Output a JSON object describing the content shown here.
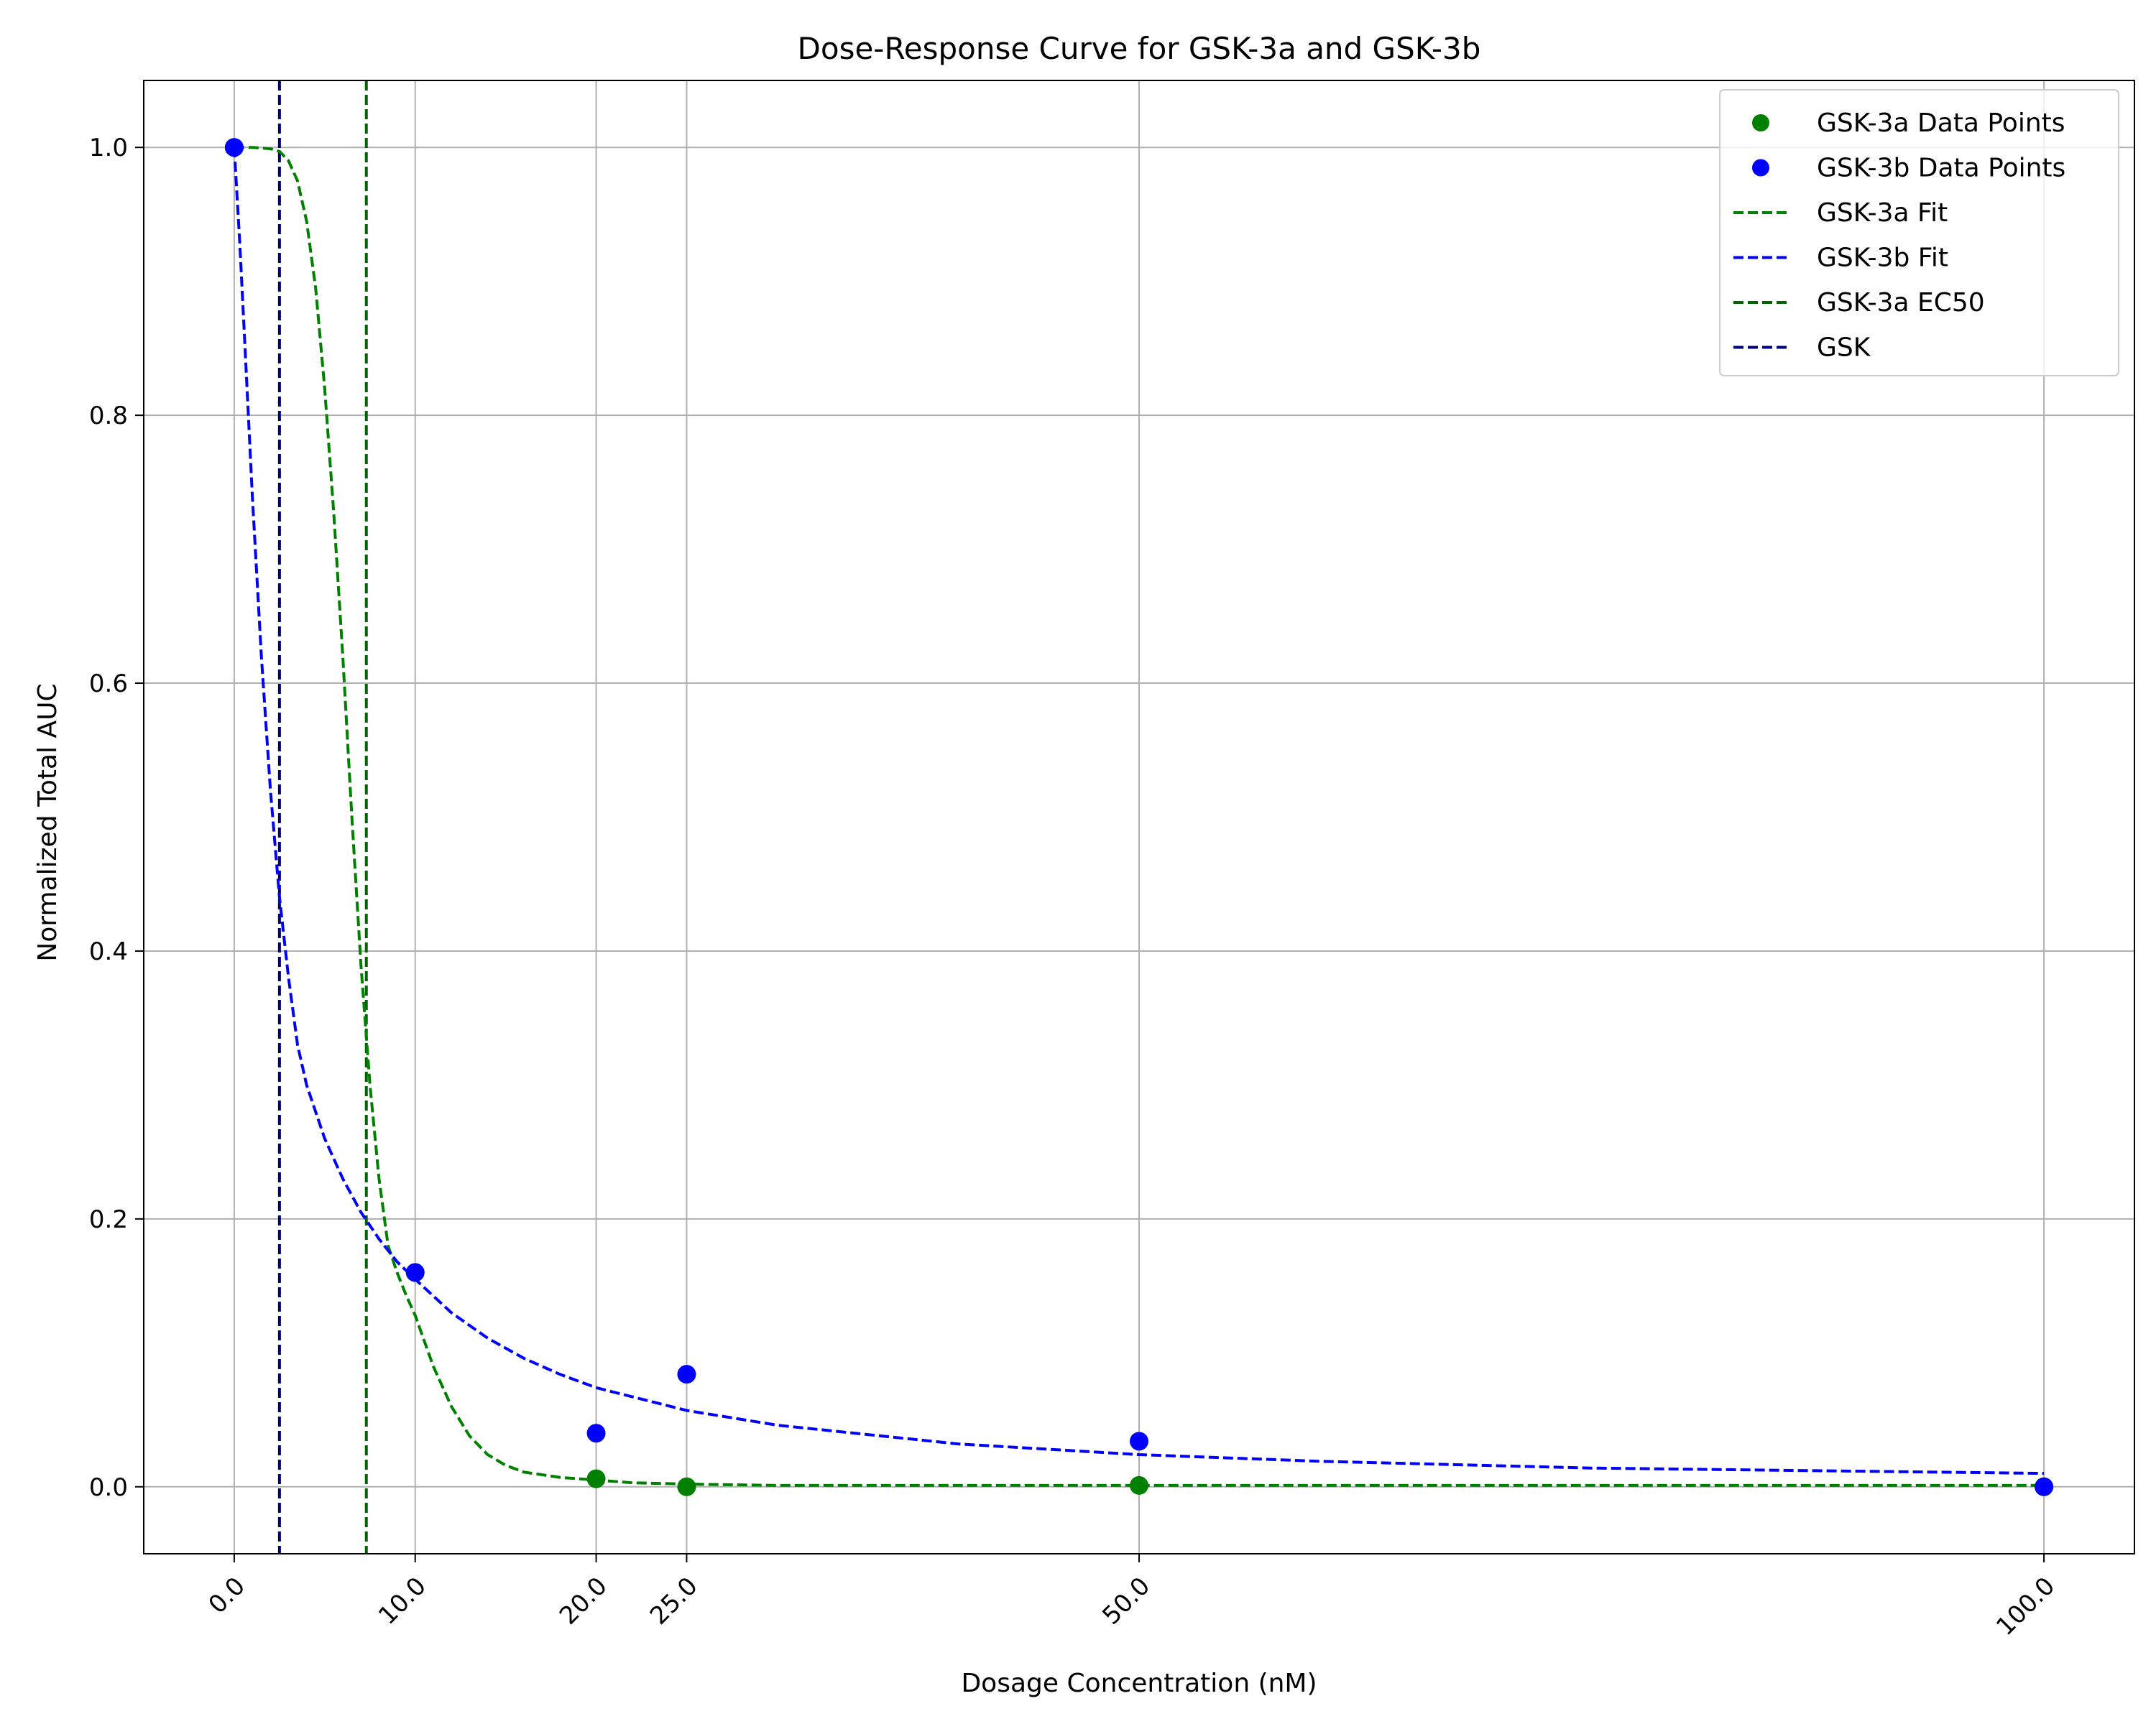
{
  "chart_data": {
    "type": "scatter",
    "title": "Dose-Response Curve for GSK-3a and GSK-3b",
    "xlabel": "Dosage Concentration (nM)",
    "ylabel": "Normalized Total AUC",
    "xlim": [
      -5,
      105
    ],
    "ylim": [
      -0.05,
      1.05
    ],
    "x_ticks": [
      0,
      10,
      20,
      25,
      50,
      100
    ],
    "x_tick_labels": [
      "0.0",
      "10.0",
      "20.0",
      "25.0",
      "50.0",
      "100.0"
    ],
    "y_ticks": [
      0,
      0.2,
      0.4,
      0.6,
      0.8,
      1.0
    ],
    "y_tick_labels": [
      "0.0",
      "0.2",
      "0.4",
      "0.6",
      "0.8",
      "1.0"
    ],
    "grid": true,
    "legend_position": "top-right",
    "scatter_series": [
      {
        "name": "GSK-3a Data Points",
        "color": "#008000",
        "x": [
          0,
          10,
          20,
          25,
          50,
          100
        ],
        "y": [
          1.0,
          0.16,
          0.006,
          0.0,
          0.001,
          0.0
        ]
      },
      {
        "name": "GSK-3b Data Points",
        "color": "#0000ff",
        "x": [
          0,
          10,
          20,
          25,
          50,
          100
        ],
        "y": [
          1.0,
          0.16,
          0.04,
          0.084,
          0.034,
          0.0
        ]
      }
    ],
    "fit_series": [
      {
        "name": "GSK-3a Fit",
        "color": "#008000",
        "dashed": true,
        "x": [
          0,
          1,
          2,
          2.5,
          3,
          3.5,
          4,
          4.5,
          5,
          5.5,
          6,
          6.5,
          7,
          7.5,
          8,
          8.5,
          9,
          9.5,
          10,
          11,
          12,
          13,
          14,
          15,
          16,
          18,
          20,
          22,
          25,
          30,
          40,
          50,
          60,
          75,
          100
        ],
        "y": [
          1.0,
          1.0,
          0.999,
          0.997,
          0.99,
          0.975,
          0.945,
          0.895,
          0.82,
          0.727,
          0.62,
          0.5,
          0.39,
          0.3,
          0.23,
          0.18,
          0.16,
          0.143,
          0.128,
          0.09,
          0.06,
          0.038,
          0.024,
          0.016,
          0.011,
          0.007,
          0.005,
          0.003,
          0.002,
          0.001,
          0.001,
          0.001,
          0.001,
          0.001,
          0.001
        ]
      },
      {
        "name": "GSK-3b Fit",
        "color": "#0000ff",
        "dashed": true,
        "x": [
          0,
          0.3,
          0.6,
          1,
          1.5,
          2,
          2.5,
          3,
          3.5,
          4,
          5,
          6,
          7,
          8,
          9,
          10,
          12,
          14,
          16,
          18,
          20,
          25,
          30,
          40,
          50,
          60,
          75,
          100
        ],
        "y": [
          1.0,
          0.93,
          0.85,
          0.74,
          0.62,
          0.52,
          0.44,
          0.38,
          0.33,
          0.3,
          0.26,
          0.23,
          0.205,
          0.185,
          0.168,
          0.155,
          0.13,
          0.111,
          0.096,
          0.084,
          0.074,
          0.057,
          0.046,
          0.032,
          0.024,
          0.019,
          0.014,
          0.01
        ]
      }
    ],
    "vertical_lines": [
      {
        "name": "GSK-3a EC50",
        "color": "#006400",
        "x": 7.3
      },
      {
        "name": "GSK",
        "color": "#00007d",
        "x": 2.5
      }
    ]
  }
}
